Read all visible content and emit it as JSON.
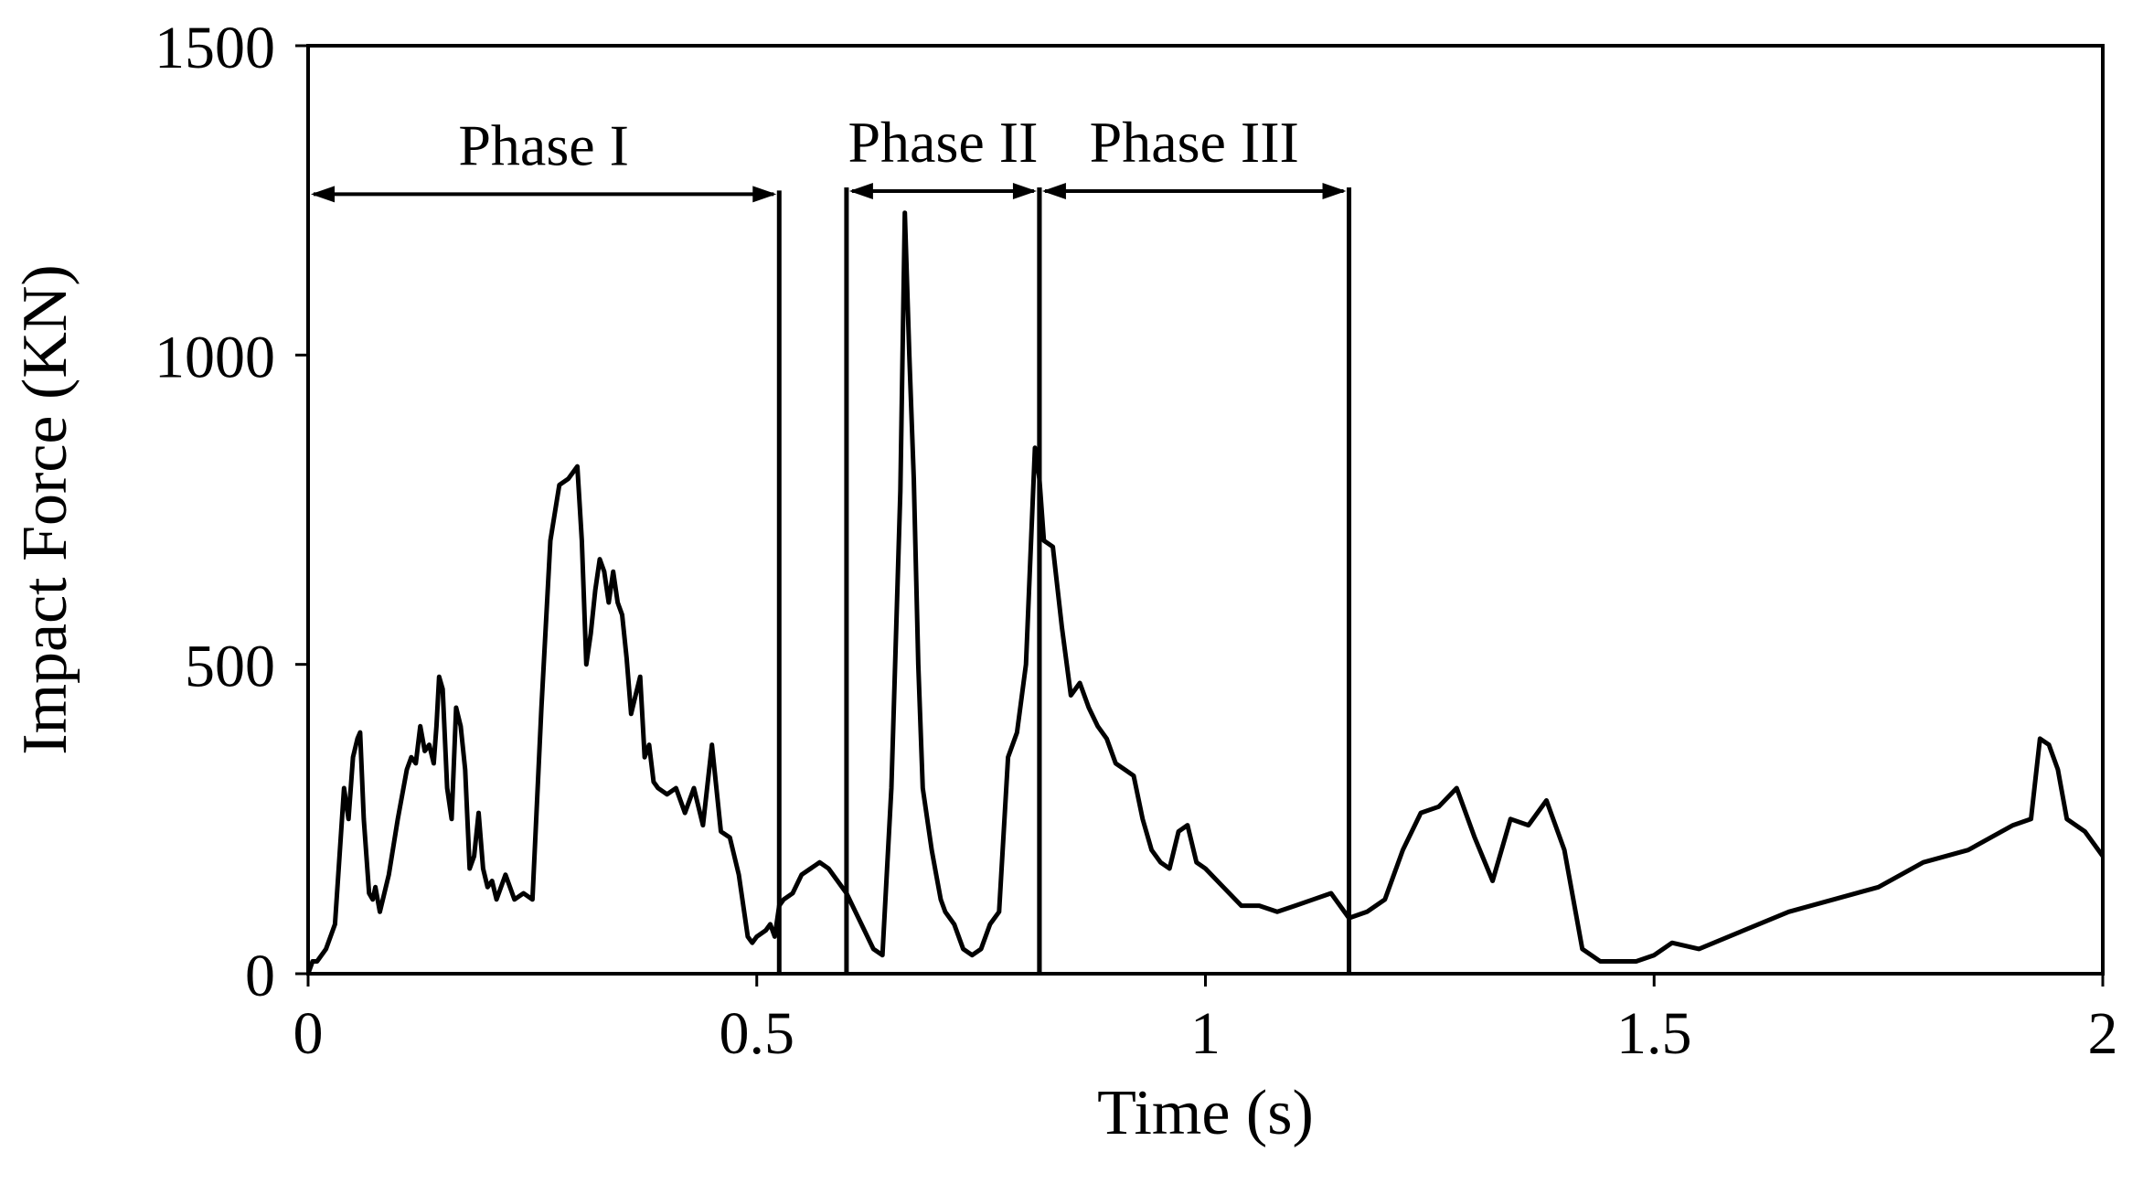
{
  "chart_data": {
    "type": "line",
    "title": "",
    "xlabel": "Time (s)",
    "ylabel": "Impact Force (KN)",
    "xlim": [
      0,
      2
    ],
    "ylim": [
      0,
      1500
    ],
    "xticks": [
      0,
      0.5,
      1,
      1.5,
      2
    ],
    "xtick_labels": [
      "0",
      "0.5",
      "1",
      "1.5",
      "2"
    ],
    "yticks": [
      0,
      500,
      1000,
      1500
    ],
    "ytick_labels": [
      "0",
      "500",
      "1000",
      "1500"
    ],
    "grid": false,
    "legend": "none",
    "line_color": "#000000",
    "phases": [
      {
        "label": "Phase I",
        "start": 0.0,
        "end": 0.525,
        "arrow_y": 1260
      },
      {
        "label": "Phase II",
        "start": 0.6,
        "end": 0.815,
        "arrow_y": 1265
      },
      {
        "label": "Phase III",
        "start": 0.815,
        "end": 1.16,
        "arrow_y": 1265
      }
    ],
    "series": [
      {
        "x": [
          0,
          0.005,
          0.01,
          0.02,
          0.03,
          0.04,
          0.045,
          0.05,
          0.055,
          0.058,
          0.062,
          0.068,
          0.072,
          0.075,
          0.08,
          0.085,
          0.09,
          0.1,
          0.11,
          0.115,
          0.12,
          0.125,
          0.13,
          0.135,
          0.14,
          0.143,
          0.146,
          0.15,
          0.155,
          0.16,
          0.165,
          0.17,
          0.175,
          0.18,
          0.185,
          0.19,
          0.195,
          0.2,
          0.205,
          0.21,
          0.22,
          0.23,
          0.24,
          0.25,
          0.26,
          0.27,
          0.28,
          0.29,
          0.3,
          0.305,
          0.31,
          0.315,
          0.32,
          0.325,
          0.33,
          0.335,
          0.34,
          0.345,
          0.35,
          0.355,
          0.36,
          0.365,
          0.37,
          0.375,
          0.38,
          0.385,
          0.39,
          0.4,
          0.41,
          0.42,
          0.43,
          0.44,
          0.45,
          0.46,
          0.47,
          0.48,
          0.49,
          0.495,
          0.5,
          0.51,
          0.515,
          0.52,
          0.525,
          0.53,
          0.54,
          0.55,
          0.56,
          0.57,
          0.58,
          0.59,
          0.6,
          0.61,
          0.62,
          0.63,
          0.64,
          0.65,
          0.66,
          0.665,
          0.67,
          0.675,
          0.68,
          0.685,
          0.69,
          0.695,
          0.7,
          0.705,
          0.71,
          0.72,
          0.73,
          0.74,
          0.75,
          0.76,
          0.77,
          0.78,
          0.79,
          0.8,
          0.81,
          0.815,
          0.82,
          0.83,
          0.84,
          0.85,
          0.86,
          0.87,
          0.88,
          0.89,
          0.9,
          0.91,
          0.92,
          0.93,
          0.94,
          0.95,
          0.96,
          0.97,
          0.98,
          0.99,
          1.0,
          1.02,
          1.04,
          1.06,
          1.08,
          1.1,
          1.12,
          1.14,
          1.16,
          1.18,
          1.2,
          1.22,
          1.24,
          1.26,
          1.28,
          1.3,
          1.32,
          1.34,
          1.36,
          1.38,
          1.4,
          1.42,
          1.44,
          1.46,
          1.48,
          1.5,
          1.52,
          1.55,
          1.6,
          1.65,
          1.7,
          1.75,
          1.8,
          1.85,
          1.9,
          1.92,
          1.93,
          1.94,
          1.95,
          1.96,
          1.98,
          2.0
        ],
        "y": [
          0,
          20,
          20,
          40,
          80,
          300,
          250,
          350,
          380,
          390,
          250,
          130,
          120,
          140,
          100,
          130,
          160,
          250,
          330,
          350,
          340,
          400,
          360,
          370,
          340,
          400,
          480,
          460,
          300,
          250,
          430,
          400,
          330,
          170,
          190,
          260,
          170,
          140,
          150,
          120,
          160,
          120,
          130,
          120,
          430,
          700,
          790,
          800,
          820,
          700,
          500,
          550,
          620,
          670,
          650,
          600,
          650,
          600,
          580,
          510,
          420,
          450,
          480,
          350,
          370,
          310,
          300,
          290,
          300,
          260,
          300,
          240,
          370,
          230,
          220,
          160,
          60,
          50,
          60,
          70,
          80,
          60,
          110,
          120,
          130,
          160,
          170,
          180,
          170,
          150,
          130,
          100,
          70,
          40,
          30,
          300,
          780,
          1230,
          1000,
          800,
          500,
          300,
          250,
          200,
          160,
          120,
          100,
          80,
          40,
          30,
          40,
          80,
          100,
          350,
          390,
          500,
          850,
          800,
          700,
          690,
          560,
          450,
          470,
          430,
          400,
          380,
          340,
          330,
          320,
          250,
          200,
          180,
          170,
          230,
          240,
          180,
          170,
          140,
          110,
          110,
          100,
          110,
          120,
          130,
          90,
          100,
          120,
          200,
          260,
          270,
          300,
          220,
          150,
          250,
          240,
          280,
          200,
          40,
          20,
          20,
          20,
          30,
          50,
          40,
          70,
          100,
          120,
          140,
          180,
          200,
          240,
          250,
          380,
          370,
          330,
          250,
          230,
          190
        ]
      }
    ]
  }
}
